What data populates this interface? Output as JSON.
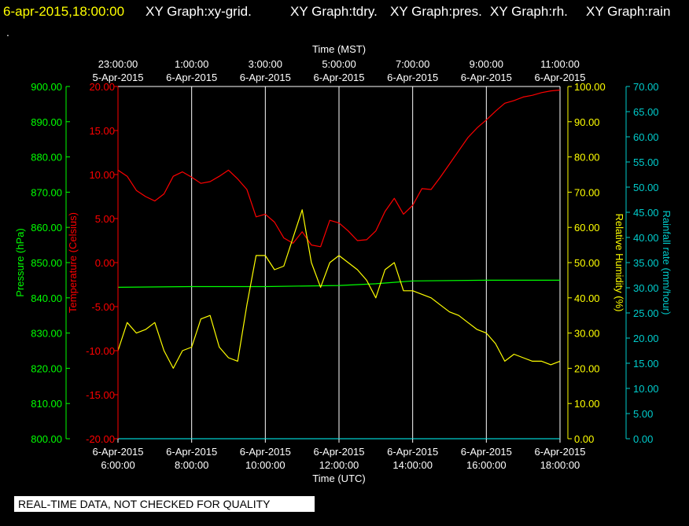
{
  "header": {
    "timestamp": "6-apr-2015,18:00:00",
    "graphs": [
      "XY Graph:xy-grid.",
      "XY Graph:tdry.",
      "XY Graph:pres.",
      "XY Graph:rh.",
      "XY Graph:rain"
    ],
    "trailing": "."
  },
  "footer": {
    "text": "REAL-TIME DATA, NOT CHECKED FOR QUALITY"
  },
  "colors": {
    "background": "#000000",
    "grid": "#ffffff",
    "temperature": "#ff0000",
    "pressure": "#00ff00",
    "humidity": "#ffff00",
    "rain": "#00cccc",
    "timestamp": "#ffff00",
    "header_text": "#ffffff"
  },
  "chart_data": {
    "type": "line",
    "grid": true,
    "x_top": {
      "label": "Time (MST)",
      "ticks": [
        {
          "time": "23:00:00",
          "date": "5-Apr-2015"
        },
        {
          "time": "1:00:00",
          "date": "6-Apr-2015"
        },
        {
          "time": "3:00:00",
          "date": "6-Apr-2015"
        },
        {
          "time": "5:00:00",
          "date": "6-Apr-2015"
        },
        {
          "time": "7:00:00",
          "date": "6-Apr-2015"
        },
        {
          "time": "9:00:00",
          "date": "6-Apr-2015"
        },
        {
          "time": "11:00:00",
          "date": "6-Apr-2015"
        }
      ]
    },
    "x_bottom": {
      "label": "Time (UTC)",
      "range": [
        "6-Apr-2015 6:00:00",
        "6-Apr-2015 18:00:00"
      ],
      "ticks": [
        {
          "date": "6-Apr-2015",
          "time": "6:00:00"
        },
        {
          "date": "6-Apr-2015",
          "time": "8:00:00"
        },
        {
          "date": "6-Apr-2015",
          "time": "10:00:00"
        },
        {
          "date": "6-Apr-2015",
          "time": "12:00:00"
        },
        {
          "date": "6-Apr-2015",
          "time": "14:00:00"
        },
        {
          "date": "6-Apr-2015",
          "time": "16:00:00"
        },
        {
          "date": "6-Apr-2015",
          "time": "18:00:00"
        }
      ]
    },
    "axes": {
      "pressure": {
        "label": "Pressure (hPa)",
        "range": [
          800,
          900
        ],
        "ticks": [
          "800.00",
          "810.00",
          "820.00",
          "830.00",
          "840.00",
          "850.00",
          "860.00",
          "870.00",
          "880.00",
          "890.00",
          "900.00"
        ]
      },
      "temperature": {
        "label": "Temperature (Celsius)",
        "range": [
          -20,
          20
        ],
        "ticks": [
          "-20.00",
          "-15.00",
          "-10.00",
          "-5.00",
          "0.00",
          "5.00",
          "10.00",
          "15.00",
          "20.00"
        ]
      },
      "humidity": {
        "label": "Relative Humidity (%)",
        "range": [
          0,
          100
        ],
        "ticks": [
          "0.00",
          "10.00",
          "20.00",
          "30.00",
          "40.00",
          "50.00",
          "60.00",
          "70.00",
          "80.00",
          "90.00",
          "100.00"
        ]
      },
      "rain": {
        "label": "Rainfall rate (mm/hour)",
        "range": [
          0,
          70
        ],
        "ticks": [
          "0.00",
          "5.00",
          "10.00",
          "15.00",
          "20.00",
          "25.00",
          "30.00",
          "35.00",
          "40.00",
          "45.00",
          "50.00",
          "55.00",
          "60.00",
          "65.00",
          "70.00"
        ]
      }
    },
    "series": [
      {
        "name": "Temperature (Celsius)",
        "axis": "temperature",
        "x": [
          "6:00",
          "6:15",
          "6:30",
          "6:45",
          "7:00",
          "7:15",
          "7:30",
          "7:45",
          "8:00",
          "8:15",
          "8:30",
          "8:45",
          "9:00",
          "9:15",
          "9:30",
          "9:45",
          "10:00",
          "10:15",
          "10:30",
          "10:45",
          "11:00",
          "11:15",
          "11:30",
          "11:45",
          "12:00",
          "12:15",
          "12:30",
          "12:45",
          "13:00",
          "13:15",
          "13:30",
          "13:45",
          "14:00",
          "14:15",
          "14:30",
          "14:45",
          "15:00",
          "15:15",
          "15:30",
          "15:45",
          "16:00",
          "16:15",
          "16:30",
          "16:45",
          "17:00",
          "17:15",
          "17:30",
          "17:45",
          "18:00"
        ],
        "y": [
          10.5,
          9.8,
          8.2,
          7.5,
          7.0,
          7.8,
          9.8,
          10.3,
          9.7,
          9.0,
          9.2,
          9.8,
          10.5,
          9.5,
          8.3,
          5.2,
          5.5,
          4.6,
          2.8,
          2.2,
          3.5,
          2.0,
          1.8,
          4.8,
          4.5,
          3.6,
          2.5,
          2.6,
          3.6,
          5.8,
          7.3,
          5.5,
          6.5,
          8.4,
          8.3,
          9.7,
          11.2,
          12.7,
          14.2,
          15.3,
          16.2,
          17.2,
          18.1,
          18.4,
          18.8,
          19.0,
          19.3,
          19.5,
          19.6
        ]
      },
      {
        "name": "Pressure (hPa)",
        "axis": "pressure",
        "x": [
          "6:00",
          "8:00",
          "10:00",
          "12:00",
          "13:00",
          "14:00",
          "16:00",
          "18:00"
        ],
        "y": [
          843.0,
          843.2,
          843.2,
          843.5,
          844.0,
          844.8,
          845.0,
          845.0
        ]
      },
      {
        "name": "Relative Humidity (%)",
        "axis": "humidity",
        "x": [
          "6:00",
          "6:15",
          "6:30",
          "6:45",
          "7:00",
          "7:15",
          "7:30",
          "7:45",
          "8:00",
          "8:15",
          "8:30",
          "8:45",
          "9:00",
          "9:15",
          "9:30",
          "9:45",
          "10:00",
          "10:15",
          "10:30",
          "10:45",
          "11:00",
          "11:15",
          "11:30",
          "11:45",
          "12:00",
          "12:15",
          "12:30",
          "12:45",
          "13:00",
          "13:15",
          "13:30",
          "13:45",
          "14:00",
          "14:15",
          "14:30",
          "14:45",
          "15:00",
          "15:15",
          "15:30",
          "15:45",
          "16:00",
          "16:15",
          "16:30",
          "16:45",
          "17:00",
          "17:15",
          "17:30",
          "17:45",
          "18:00"
        ],
        "y": [
          25,
          33,
          30,
          31,
          33,
          25,
          20,
          25,
          26,
          34,
          35,
          26,
          23,
          22,
          38,
          52,
          52,
          48,
          49,
          57,
          65,
          50,
          43,
          50,
          52,
          50,
          48,
          45,
          40,
          48,
          50,
          42,
          42,
          41,
          40,
          38,
          36,
          35,
          33,
          31,
          30,
          27,
          22,
          24,
          23,
          22,
          22,
          21,
          22
        ]
      },
      {
        "name": "Rainfall rate (mm/hour)",
        "axis": "rain",
        "x": [
          "6:00",
          "18:00"
        ],
        "y": [
          0,
          0
        ]
      }
    ]
  }
}
